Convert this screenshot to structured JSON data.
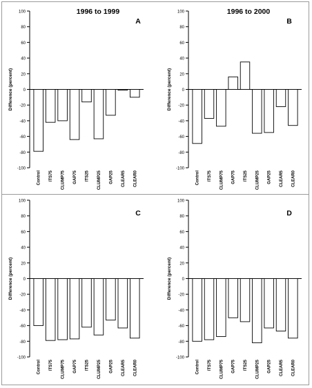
{
  "figure": {
    "panel_titles": [
      "1996 to 1999",
      "1996 to 2000"
    ]
  },
  "chart_data": [
    {
      "type": "bar",
      "panel_letter": "A",
      "title": "1996 to 1999",
      "xlabel": "",
      "ylabel": "Difference (percent)",
      "ylim": [
        -100,
        100
      ],
      "yticks": [
        -100,
        -80,
        -60,
        -40,
        -20,
        0,
        20,
        40,
        60,
        80,
        100
      ],
      "categories": [
        "Control",
        "ITS75",
        "CLUMP75",
        "GAP75",
        "ITS25",
        "CLUMP25",
        "GAP25",
        "CLEAR5",
        "CLEAR0"
      ],
      "values": [
        -79,
        -42,
        -40,
        -64,
        -16,
        -63,
        -33,
        -1,
        -10
      ],
      "colors": {
        "fill": "#ffffff",
        "stroke": "#000000"
      }
    },
    {
      "type": "bar",
      "panel_letter": "B",
      "title": "1996 to 2000",
      "xlabel": "",
      "ylabel": "Difference (percent)",
      "ylim": [
        -100,
        100
      ],
      "yticks": [
        -100,
        -80,
        -60,
        -40,
        -20,
        0,
        20,
        40,
        60,
        80,
        100
      ],
      "categories": [
        "Control",
        "ITS75",
        "CLUMP75",
        "GAP75",
        "ITS25",
        "CLUMP25",
        "GAP25",
        "CLEAR5",
        "CLEAR0"
      ],
      "values": [
        -69,
        -37,
        -47,
        16,
        35,
        -56,
        -55,
        -22,
        -46
      ],
      "colors": {
        "fill": "#ffffff",
        "stroke": "#000000"
      }
    },
    {
      "type": "bar",
      "panel_letter": "C",
      "title": "",
      "xlabel": "",
      "ylabel": "Difference (percent)",
      "ylim": [
        -100,
        100
      ],
      "yticks": [
        -100,
        -80,
        -60,
        -40,
        -20,
        0,
        20,
        40,
        60,
        80,
        100
      ],
      "categories": [
        "Control",
        "ITS75",
        "CLUMP75",
        "GAP75",
        "ITS25",
        "CLUMP25",
        "GAP25",
        "CLEAR5",
        "CLEAR0"
      ],
      "values": [
        -60,
        -79,
        -78,
        -77,
        -62,
        -72,
        -53,
        -63,
        -76
      ],
      "colors": {
        "fill": "#ffffff",
        "stroke": "#000000"
      }
    },
    {
      "type": "bar",
      "panel_letter": "D",
      "title": "",
      "xlabel": "",
      "ylabel": "Difference (percent)",
      "ylim": [
        -100,
        100
      ],
      "yticks": [
        -100,
        -80,
        -60,
        -40,
        -20,
        0,
        20,
        40,
        60,
        80,
        100
      ],
      "categories": [
        "Control",
        "ITS75",
        "CLUMP75",
        "GAP75",
        "ITS25",
        "CLUMP25",
        "GAP25",
        "CLEAR5",
        "CLEAR0"
      ],
      "values": [
        -80,
        -78,
        -74,
        -50,
        -55,
        -82,
        -63,
        -67,
        -76
      ],
      "colors": {
        "fill": "#ffffff",
        "stroke": "#000000"
      }
    }
  ]
}
